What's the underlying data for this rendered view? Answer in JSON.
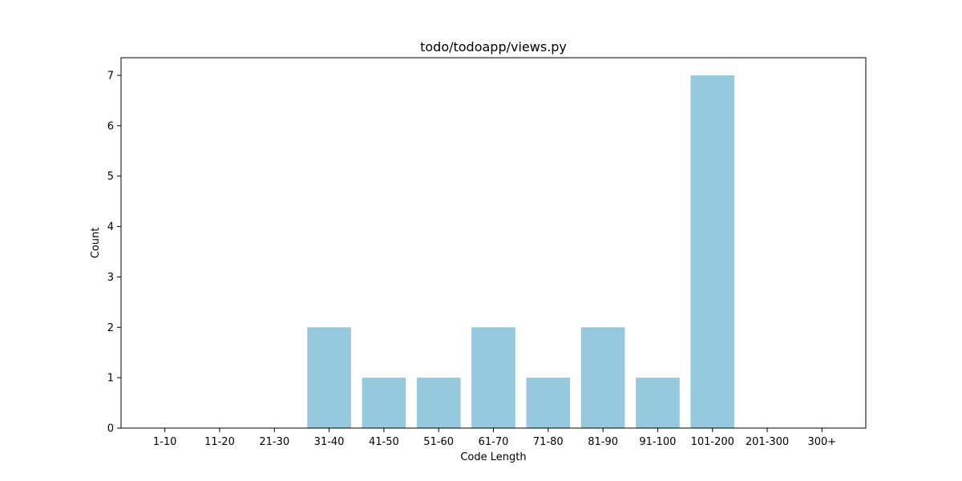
{
  "chart_data": {
    "type": "bar",
    "title": "todo/todoapp/views.py",
    "xlabel": "Code Length",
    "ylabel": "Count",
    "categories": [
      "1-10",
      "11-20",
      "21-30",
      "31-40",
      "41-50",
      "51-60",
      "61-70",
      "71-80",
      "81-90",
      "91-100",
      "101-200",
      "201-300",
      "300+"
    ],
    "values": [
      0,
      0,
      0,
      2,
      1,
      1,
      2,
      1,
      2,
      1,
      7,
      0,
      0
    ],
    "ylim": [
      0,
      7.35
    ],
    "yticks": [
      0,
      1,
      2,
      3,
      4,
      5,
      6,
      7
    ],
    "bar_color": "#96c9de",
    "grid": false,
    "legend": "none"
  }
}
